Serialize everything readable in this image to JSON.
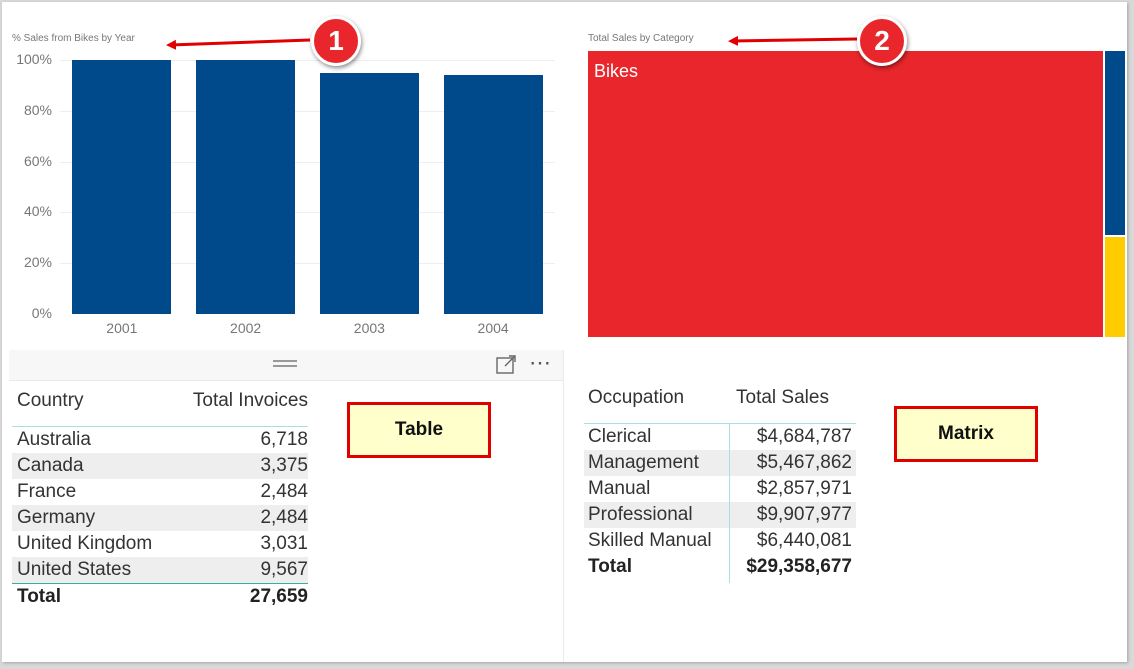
{
  "chart_data": [
    {
      "type": "bar",
      "title": "% Sales from Bikes by Year",
      "categories": [
        "2001",
        "2002",
        "2003",
        "2004"
      ],
      "values": [
        100,
        100,
        95,
        94
      ],
      "ylim": [
        0,
        100
      ],
      "yticks": [
        "0%",
        "20%",
        "40%",
        "60%",
        "80%",
        "100%"
      ],
      "xlabel": "",
      "ylabel": "",
      "colors": {
        "bar": "#004a8c"
      },
      "grid": true
    },
    {
      "type": "treemap",
      "title": "Total Sales by Category",
      "categories": [
        "Bikes",
        "",
        ""
      ],
      "values": [
        96.3,
        2.4,
        1.3
      ],
      "colors": [
        "#e8262c",
        "#004a8c",
        "#ffcc00"
      ]
    }
  ],
  "table": {
    "label": "Table",
    "columns": [
      "Country",
      "Total Invoices"
    ],
    "rows": [
      [
        "Australia",
        "6,718"
      ],
      [
        "Canada",
        "3,375"
      ],
      [
        "France",
        "2,484"
      ],
      [
        "Germany",
        "2,484"
      ],
      [
        "United Kingdom",
        "3,031"
      ],
      [
        "United States",
        "9,567"
      ]
    ],
    "total": [
      "Total",
      "27,659"
    ]
  },
  "matrix": {
    "label": "Matrix",
    "columns": [
      "Occupation",
      "Total Sales"
    ],
    "rows": [
      [
        "Clerical",
        "$4,684,787"
      ],
      [
        "Management",
        "$5,467,862"
      ],
      [
        "Manual",
        "$2,857,971"
      ],
      [
        "Professional",
        "$9,907,977"
      ],
      [
        "Skilled Manual",
        "$6,440,081"
      ]
    ],
    "total": [
      "Total",
      "$29,358,677"
    ]
  },
  "callouts": [
    "1",
    "2"
  ],
  "panel_header": {
    "icons": [
      "drag-handle-icon",
      "focus-mode-icon",
      "more-options-icon"
    ],
    "more_glyph": "⋯"
  }
}
